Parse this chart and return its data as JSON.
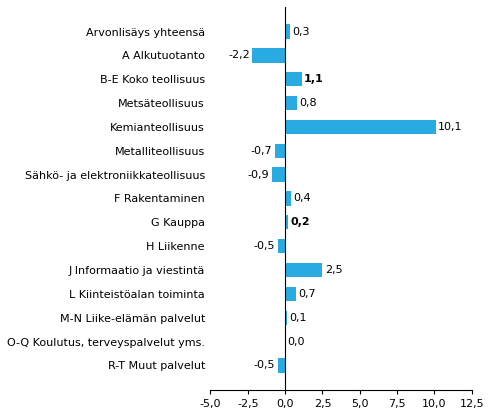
{
  "categories": [
    "R-T Muut palvelut",
    "O-Q Koulutus, terveyspalvelut yms.",
    "M-N Liike-elämän palvelut",
    "L Kiinteistöalan toiminta",
    "J Informaatio ja viestintä",
    "H Liikenne",
    "G Kauppa",
    "F Rakentaminen",
    "Sähkö- ja elektroniikkateollisuus",
    "Metalliteollisuus",
    "Kemianteollisuus",
    "Metsäteollisuus",
    "B-E Koko teollisuus",
    "A Alkutuotanto",
    "Arvonlisäys yhteensä"
  ],
  "values": [
    -0.5,
    0.0,
    0.1,
    0.7,
    2.5,
    -0.5,
    0.2,
    0.4,
    -0.9,
    -0.7,
    10.1,
    0.8,
    1.1,
    -2.2,
    0.3
  ],
  "bar_color": "#29abe2",
  "xlim": [
    -5.0,
    12.5
  ],
  "xticks": [
    -5.0,
    -2.5,
    0.0,
    2.5,
    5.0,
    7.5,
    10.0,
    12.5
  ],
  "xtick_labels": [
    "-5,0",
    "-2,5",
    "0,0",
    "2,5",
    "5,0",
    "7,5",
    "10,0",
    "12,5"
  ],
  "label_fontsize": 8.0,
  "tick_fontsize": 8.0,
  "bold_indices": [
    12,
    6
  ],
  "figsize": [
    4.91,
    4.16
  ],
  "dpi": 100
}
